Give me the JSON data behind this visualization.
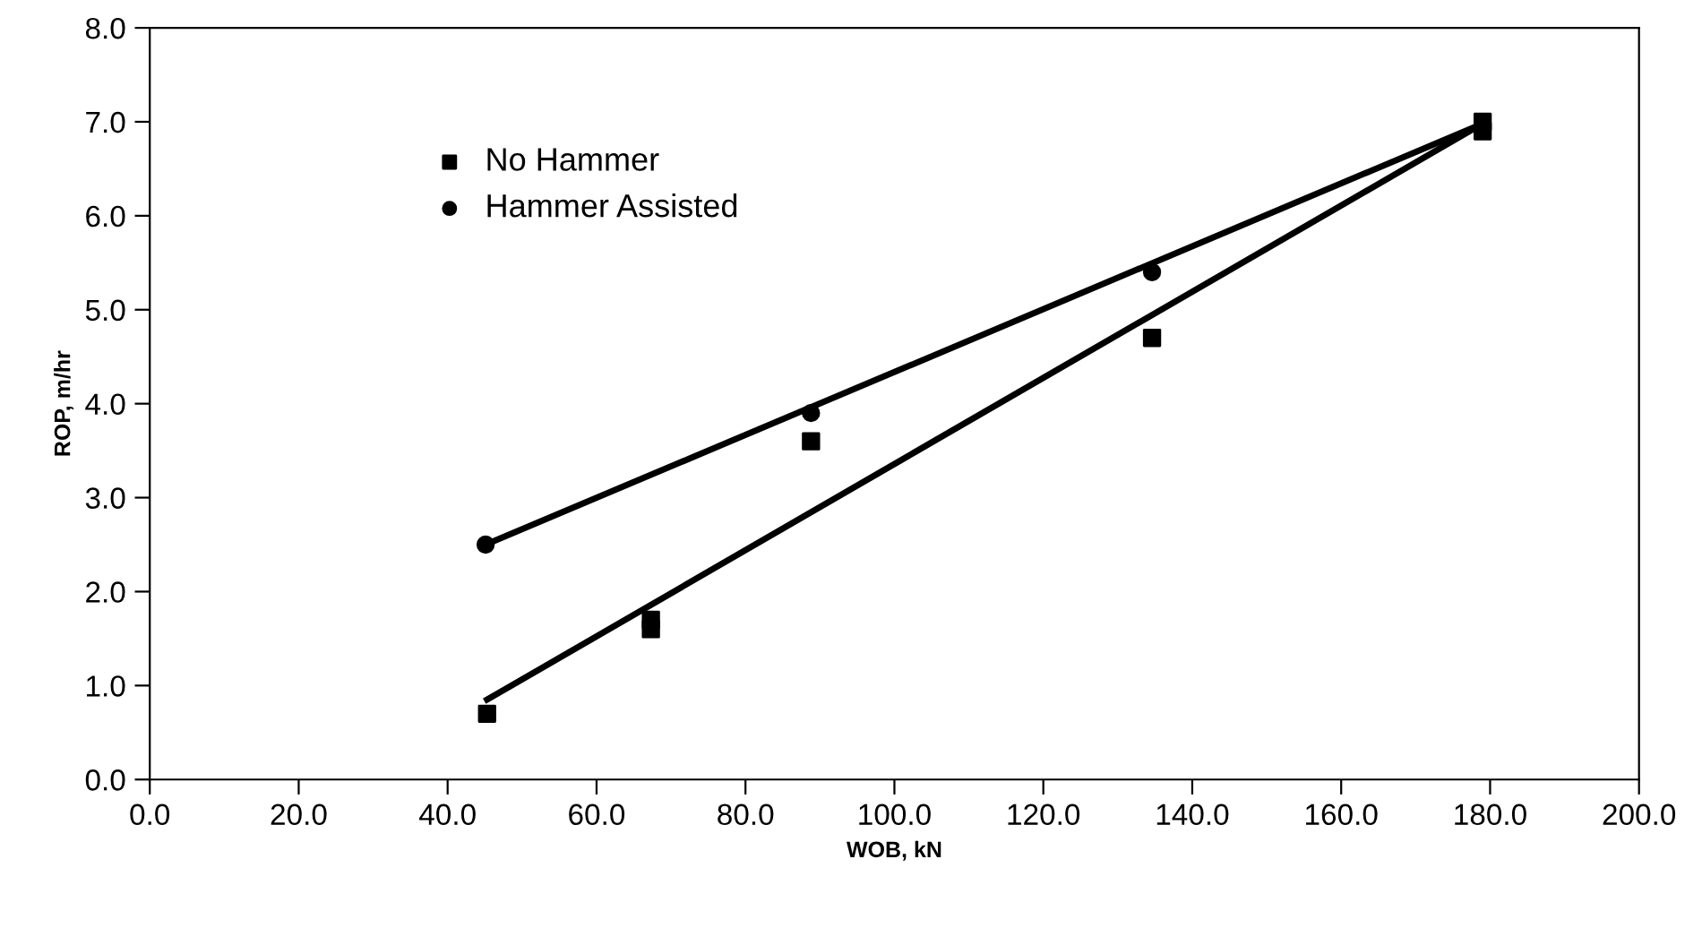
{
  "chart_data": {
    "type": "scatter",
    "xlabel": "WOB, kN",
    "ylabel": "ROP, m/hr",
    "xlim": [
      0,
      200
    ],
    "xticks": [
      {
        "value": 0,
        "label": "0.0"
      },
      {
        "value": 20,
        "label": "20.0"
      },
      {
        "value": 40,
        "label": "40.0"
      },
      {
        "value": 60,
        "label": "60.0"
      },
      {
        "value": 80,
        "label": "80.0"
      },
      {
        "value": 100,
        "label": "100.0"
      },
      {
        "value": 120,
        "label": "120.0"
      },
      {
        "value": 140,
        "label": "140.0"
      },
      {
        "value": 160,
        "label": "160.0"
      },
      {
        "value": 180,
        "label": "180.0"
      },
      {
        "value": 200,
        "label": "200.0"
      }
    ],
    "ylim": [
      0,
      8
    ],
    "yticks": [
      {
        "value": 0,
        "label": "0.0"
      },
      {
        "value": 1,
        "label": "1.0"
      },
      {
        "value": 2,
        "label": "2.0"
      },
      {
        "value": 3,
        "label": "3.0"
      },
      {
        "value": 4,
        "label": "4.0"
      },
      {
        "value": 5,
        "label": "5.0"
      },
      {
        "value": 6,
        "label": "6.0"
      },
      {
        "value": 7,
        "label": "7.0"
      },
      {
        "value": 8,
        "label": "8.0"
      }
    ],
    "grid": false,
    "legend": "top left",
    "series": [
      {
        "name": "No Hammer",
        "marker": "square",
        "color": "#000000",
        "x": [
          45.3,
          67.3,
          67.3,
          88.8,
          134.6,
          179,
          179
        ],
        "values": [
          0.7,
          1.7,
          1.6,
          3.6,
          4.7,
          6.9,
          7.0
        ]
      },
      {
        "name": "Hammer Assisted",
        "marker": "circle",
        "color": "#000000",
        "x": [
          45.1,
          88.8,
          134.6
        ],
        "values": [
          2.5,
          3.9,
          5.4
        ]
      },
      {
        "type": "line",
        "marker": "none",
        "color": "#000000",
        "x": [
          45.3,
          179
        ],
        "values": [
          0.85,
          6.98
        ]
      },
      {
        "type": "line",
        "marker": "none",
        "color": "#000000",
        "x": [
          45.1,
          179
        ],
        "values": [
          2.5,
          6.98
        ]
      }
    ]
  }
}
